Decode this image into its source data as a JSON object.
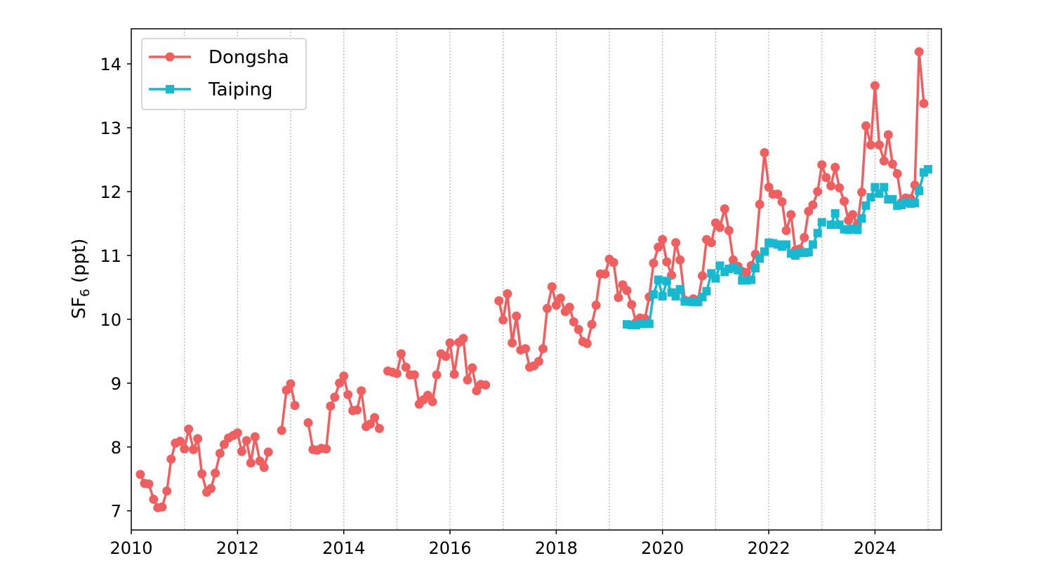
{
  "chart_data": {
    "type": "line",
    "title": "",
    "xlabel": "",
    "ylabel": {
      "prefix": "SF",
      "subscript": "6",
      "suffix": " (ppt)"
    },
    "xlim": [
      2010.0,
      2025.25
    ],
    "ylim": [
      6.7,
      14.55
    ],
    "xticks": [
      2010,
      2012,
      2014,
      2016,
      2018,
      2020,
      2022,
      2024
    ],
    "xtick_labels": [
      "2010",
      "2012",
      "2014",
      "2016",
      "2018",
      "2020",
      "2022",
      "2024"
    ],
    "yticks": [
      7,
      8,
      9,
      10,
      11,
      12,
      13,
      14
    ],
    "ytick_labels": [
      "7",
      "8",
      "9",
      "10",
      "11",
      "12",
      "13",
      "14"
    ],
    "year_gridlines": [
      2011,
      2012,
      2013,
      2014,
      2015,
      2016,
      2017,
      2018,
      2019,
      2020,
      2021,
      2022,
      2023,
      2024,
      2025
    ],
    "grid": "vertical dotted at year boundaries",
    "legend": {
      "position": "top-left",
      "entries": [
        "Dongsha",
        "Taiping"
      ]
    },
    "series": [
      {
        "name": "Dongsha",
        "color": "#ef5f5f",
        "marker": "circle",
        "segments": [
          [
            [
              2010.17,
              7.57
            ],
            [
              2010.25,
              7.43
            ],
            [
              2010.33,
              7.42
            ],
            [
              2010.42,
              7.18
            ],
            [
              2010.5,
              7.05
            ],
            [
              2010.58,
              7.06
            ],
            [
              2010.67,
              7.31
            ],
            [
              2010.75,
              7.81
            ],
            [
              2010.83,
              8.06
            ],
            [
              2010.92,
              8.09
            ],
            [
              2011.0,
              7.97
            ],
            [
              2011.08,
              8.28
            ],
            [
              2011.17,
              7.96
            ],
            [
              2011.25,
              8.13
            ],
            [
              2011.33,
              7.58
            ],
            [
              2011.42,
              7.29
            ],
            [
              2011.5,
              7.35
            ],
            [
              2011.58,
              7.59
            ],
            [
              2011.67,
              7.9
            ],
            [
              2011.75,
              8.04
            ],
            [
              2011.83,
              8.14
            ],
            [
              2011.92,
              8.18
            ],
            [
              2012.0,
              8.22
            ],
            [
              2012.08,
              7.93
            ],
            [
              2012.17,
              8.1
            ],
            [
              2012.25,
              7.75
            ],
            [
              2012.33,
              8.16
            ],
            [
              2012.42,
              7.78
            ],
            [
              2012.5,
              7.68
            ],
            [
              2012.58,
              7.92
            ]
          ],
          [
            [
              2012.83,
              8.26
            ],
            [
              2012.92,
              8.89
            ],
            [
              2013.0,
              8.99
            ],
            [
              2013.08,
              8.65
            ]
          ],
          [
            [
              2013.33,
              8.38
            ],
            [
              2013.42,
              7.96
            ],
            [
              2013.5,
              7.95
            ],
            [
              2013.58,
              7.98
            ],
            [
              2013.67,
              7.97
            ],
            [
              2013.75,
              8.64
            ],
            [
              2013.83,
              8.78
            ],
            [
              2013.92,
              9.0
            ],
            [
              2014.0,
              9.11
            ],
            [
              2014.08,
              8.82
            ],
            [
              2014.17,
              8.57
            ],
            [
              2014.25,
              8.58
            ],
            [
              2014.33,
              8.88
            ],
            [
              2014.42,
              8.32
            ],
            [
              2014.5,
              8.36
            ],
            [
              2014.58,
              8.46
            ],
            [
              2014.67,
              8.29
            ]
          ],
          [
            [
              2014.83,
              9.19
            ],
            [
              2014.92,
              9.17
            ],
            [
              2015.0,
              9.15
            ],
            [
              2015.08,
              9.46
            ],
            [
              2015.17,
              9.25
            ],
            [
              2015.25,
              9.13
            ],
            [
              2015.33,
              9.13
            ],
            [
              2015.42,
              8.67
            ],
            [
              2015.5,
              8.74
            ],
            [
              2015.58,
              8.81
            ],
            [
              2015.67,
              8.71
            ],
            [
              2015.75,
              9.13
            ],
            [
              2015.83,
              9.46
            ],
            [
              2015.92,
              9.42
            ],
            [
              2016.0,
              9.63
            ],
            [
              2016.08,
              9.14
            ],
            [
              2016.17,
              9.64
            ],
            [
              2016.25,
              9.7
            ],
            [
              2016.33,
              9.05
            ],
            [
              2016.42,
              9.24
            ],
            [
              2016.5,
              8.88
            ],
            [
              2016.58,
              8.98
            ],
            [
              2016.67,
              8.97
            ]
          ],
          [
            [
              2016.92,
              10.29
            ],
            [
              2017.0,
              9.99
            ],
            [
              2017.08,
              10.4
            ],
            [
              2017.17,
              9.63
            ],
            [
              2017.25,
              10.05
            ],
            [
              2017.33,
              9.52
            ],
            [
              2017.42,
              9.54
            ],
            [
              2017.5,
              9.25
            ],
            [
              2017.58,
              9.27
            ],
            [
              2017.67,
              9.34
            ],
            [
              2017.75,
              9.54
            ],
            [
              2017.83,
              10.17
            ],
            [
              2017.92,
              10.51
            ],
            [
              2018.0,
              10.22
            ],
            [
              2018.08,
              10.33
            ],
            [
              2018.17,
              10.12
            ],
            [
              2018.25,
              10.19
            ],
            [
              2018.33,
              9.96
            ],
            [
              2018.42,
              9.84
            ],
            [
              2018.5,
              9.65
            ],
            [
              2018.58,
              9.62
            ],
            [
              2018.67,
              9.92
            ],
            [
              2018.75,
              10.22
            ],
            [
              2018.83,
              10.71
            ],
            [
              2018.92,
              10.71
            ],
            [
              2019.0,
              10.94
            ],
            [
              2019.08,
              10.89
            ],
            [
              2019.17,
              10.34
            ],
            [
              2019.25,
              10.54
            ],
            [
              2019.33,
              10.45
            ],
            [
              2019.42,
              10.23
            ],
            [
              2019.5,
              9.95
            ],
            [
              2019.58,
              10.02
            ],
            [
              2019.67,
              10.01
            ],
            [
              2019.75,
              10.35
            ],
            [
              2019.83,
              10.88
            ],
            [
              2019.92,
              11.13
            ],
            [
              2020.0,
              11.25
            ],
            [
              2020.08,
              10.9
            ],
            [
              2020.17,
              10.69
            ],
            [
              2020.25,
              11.2
            ],
            [
              2020.33,
              10.93
            ],
            [
              2020.42,
              10.3
            ],
            [
              2020.5,
              10.28
            ],
            [
              2020.58,
              10.32
            ],
            [
              2020.67,
              10.3
            ],
            [
              2020.75,
              10.68
            ],
            [
              2020.83,
              11.25
            ],
            [
              2020.92,
              11.2
            ],
            [
              2021.0,
              11.51
            ],
            [
              2021.08,
              11.44
            ],
            [
              2021.17,
              11.73
            ],
            [
              2021.25,
              11.39
            ],
            [
              2021.33,
              10.93
            ],
            [
              2021.42,
              10.83
            ],
            [
              2021.5,
              10.75
            ],
            [
              2021.58,
              10.73
            ],
            [
              2021.67,
              10.84
            ],
            [
              2021.75,
              11.02
            ],
            [
              2021.83,
              11.8
            ],
            [
              2021.92,
              12.61
            ],
            [
              2022.0,
              12.07
            ],
            [
              2022.08,
              11.96
            ],
            [
              2022.17,
              11.96
            ],
            [
              2022.25,
              11.84
            ],
            [
              2022.33,
              11.39
            ],
            [
              2022.42,
              11.64
            ],
            [
              2022.5,
              11.08
            ],
            [
              2022.58,
              11.1
            ],
            [
              2022.67,
              11.28
            ],
            [
              2022.75,
              11.69
            ],
            [
              2022.83,
              11.79
            ],
            [
              2022.92,
              12.0
            ],
            [
              2023.0,
              12.42
            ],
            [
              2023.08,
              12.22
            ],
            [
              2023.17,
              12.09
            ],
            [
              2023.25,
              12.38
            ],
            [
              2023.33,
              12.06
            ],
            [
              2023.42,
              11.85
            ],
            [
              2023.5,
              11.55
            ],
            [
              2023.58,
              11.64
            ],
            [
              2023.67,
              11.49
            ],
            [
              2023.75,
              11.99
            ],
            [
              2023.83,
              13.03
            ],
            [
              2023.92,
              12.73
            ],
            [
              2024.0,
              13.66
            ],
            [
              2024.08,
              12.73
            ],
            [
              2024.17,
              12.48
            ],
            [
              2024.25,
              12.89
            ],
            [
              2024.33,
              12.43
            ],
            [
              2024.42,
              12.28
            ],
            [
              2024.5,
              11.83
            ],
            [
              2024.58,
              11.9
            ],
            [
              2024.67,
              11.89
            ],
            [
              2024.75,
              12.1
            ],
            [
              2024.83,
              14.19
            ],
            [
              2024.92,
              13.38
            ]
          ]
        ]
      },
      {
        "name": "Taiping",
        "color": "#17b8d0",
        "marker": "square",
        "segments": [
          [
            [
              2019.33,
              9.92
            ],
            [
              2019.42,
              9.91
            ],
            [
              2019.5,
              9.91
            ],
            [
              2019.58,
              9.93
            ],
            [
              2019.67,
              9.93
            ],
            [
              2019.75,
              9.93
            ],
            [
              2019.83,
              10.39
            ],
            [
              2019.92,
              10.62
            ],
            [
              2020.0,
              10.36
            ],
            [
              2020.08,
              10.6
            ],
            [
              2020.17,
              10.42
            ],
            [
              2020.25,
              10.36
            ],
            [
              2020.33,
              10.47
            ],
            [
              2020.42,
              10.28
            ],
            [
              2020.5,
              10.28
            ],
            [
              2020.58,
              10.27
            ],
            [
              2020.67,
              10.27
            ],
            [
              2020.75,
              10.35
            ],
            [
              2020.83,
              10.44
            ],
            [
              2020.92,
              10.72
            ],
            [
              2021.0,
              10.64
            ],
            [
              2021.08,
              10.84
            ],
            [
              2021.17,
              10.74
            ],
            [
              2021.25,
              10.79
            ],
            [
              2021.33,
              10.81
            ],
            [
              2021.42,
              10.77
            ],
            [
              2021.5,
              10.61
            ],
            [
              2021.58,
              10.61
            ],
            [
              2021.67,
              10.62
            ],
            [
              2021.75,
              10.8
            ],
            [
              2021.83,
              10.95
            ],
            [
              2021.92,
              11.06
            ],
            [
              2022.0,
              11.2
            ],
            [
              2022.08,
              11.19
            ],
            [
              2022.17,
              11.17
            ],
            [
              2022.25,
              11.14
            ],
            [
              2022.33,
              11.17
            ],
            [
              2022.42,
              11.03
            ],
            [
              2022.5,
              11.0
            ],
            [
              2022.58,
              11.04
            ],
            [
              2022.67,
              11.04
            ],
            [
              2022.75,
              11.05
            ],
            [
              2022.83,
              11.17
            ],
            [
              2022.92,
              11.35
            ],
            [
              2023.0,
              11.52
            ]
          ],
          [
            [
              2023.17,
              11.48
            ],
            [
              2023.25,
              11.66
            ],
            [
              2023.33,
              11.48
            ],
            [
              2023.42,
              11.41
            ],
            [
              2023.5,
              11.4
            ],
            [
              2023.58,
              11.42
            ],
            [
              2023.67,
              11.4
            ],
            [
              2023.75,
              11.58
            ],
            [
              2023.83,
              11.78
            ],
            [
              2023.92,
              11.91
            ],
            [
              2024.0,
              12.07
            ],
            [
              2024.08,
              11.97
            ],
            [
              2024.17,
              12.07
            ],
            [
              2024.25,
              11.88
            ],
            [
              2024.33,
              11.88
            ],
            [
              2024.42,
              11.78
            ],
            [
              2024.5,
              11.79
            ],
            [
              2024.58,
              11.83
            ],
            [
              2024.67,
              11.81
            ],
            [
              2024.75,
              11.82
            ],
            [
              2024.83,
              12.01
            ],
            [
              2024.92,
              12.3
            ],
            [
              2025.0,
              12.35
            ]
          ]
        ]
      }
    ]
  }
}
